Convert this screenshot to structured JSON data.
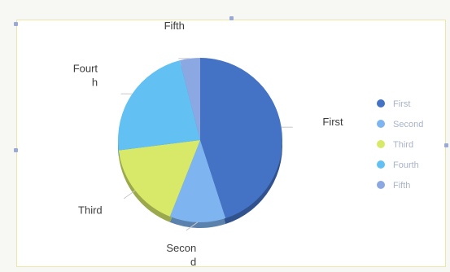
{
  "chart_data": {
    "type": "pie",
    "title": "",
    "categories": [
      "First",
      "Second",
      "Third",
      "Fourth",
      "Fifth"
    ],
    "values": [
      45,
      11,
      17,
      23,
      4
    ],
    "colors": [
      "#4472c4",
      "#7eb4ef",
      "#d8e96a",
      "#62c1f2",
      "#8ca8e2"
    ],
    "slice_labels": [
      {
        "lines": [
          "First"
        ]
      },
      {
        "lines": [
          "Secon",
          "d"
        ]
      },
      {
        "lines": [
          "Third"
        ]
      },
      {
        "lines": [
          "Fourt",
          "h"
        ]
      },
      {
        "lines": [
          "Fifth"
        ]
      }
    ],
    "legend": {
      "placement": "right",
      "entries": [
        "First",
        "Second",
        "Third",
        "Fourth",
        "Fifth"
      ]
    }
  }
}
